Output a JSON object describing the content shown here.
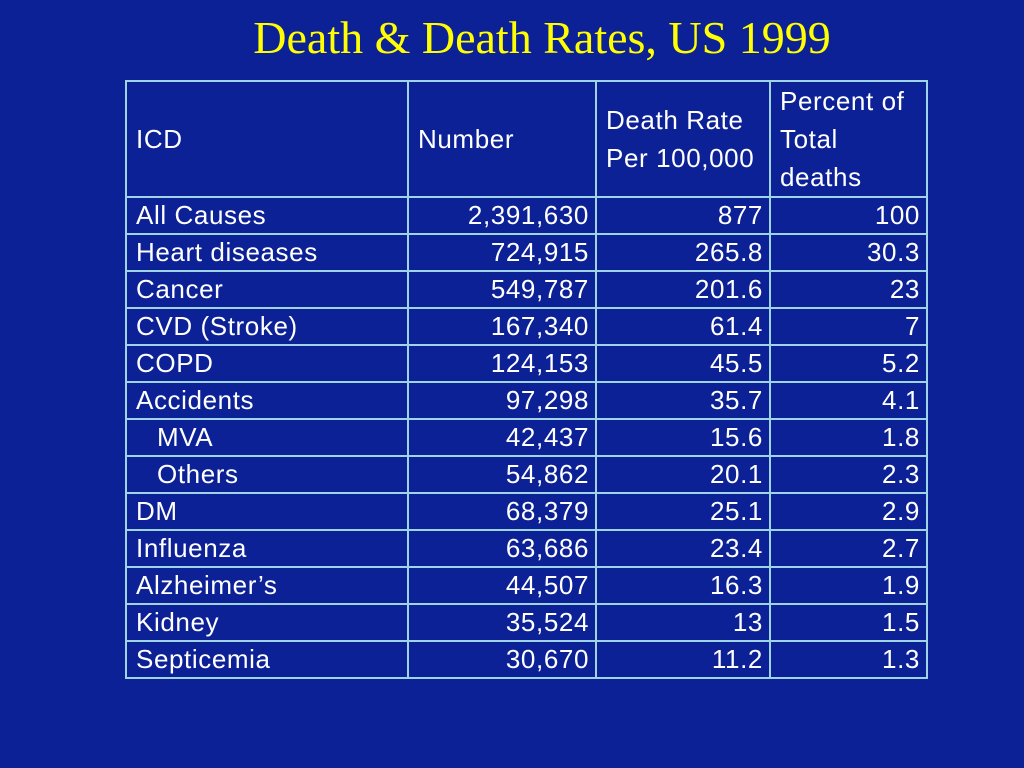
{
  "slide": {
    "title": "Death & Death Rates, US 1999"
  },
  "table": {
    "headers": [
      "ICD",
      "Number",
      "Death Rate Per 100,000",
      "Percent of Total deaths"
    ],
    "rows": [
      {
        "label": "All Causes",
        "indent": false,
        "number": "2,391,630",
        "rate": "877",
        "percent": "100"
      },
      {
        "label": "Heart diseases",
        "indent": false,
        "number": "724,915",
        "rate": "265.8",
        "percent": "30.3"
      },
      {
        "label": "Cancer",
        "indent": false,
        "number": "549,787",
        "rate": "201.6",
        "percent": "23"
      },
      {
        "label": "CVD (Stroke)",
        "indent": false,
        "number": "167,340",
        "rate": "61.4",
        "percent": "7"
      },
      {
        "label": "COPD",
        "indent": false,
        "number": "124,153",
        "rate": "45.5",
        "percent": "5.2"
      },
      {
        "label": "Accidents",
        "indent": false,
        "number": "97,298",
        "rate": "35.7",
        "percent": "4.1"
      },
      {
        "label": "MVA",
        "indent": true,
        "number": "42,437",
        "rate": "15.6",
        "percent": "1.8"
      },
      {
        "label": "Others",
        "indent": true,
        "number": "54,862",
        "rate": "20.1",
        "percent": "2.3"
      },
      {
        "label": "DM",
        "indent": false,
        "number": "68,379",
        "rate": "25.1",
        "percent": "2.9"
      },
      {
        "label": "Influenza",
        "indent": false,
        "number": "63,686",
        "rate": "23.4",
        "percent": "2.7"
      },
      {
        "label": "Alzheimer’s",
        "indent": false,
        "number": "44,507",
        "rate": "16.3",
        "percent": "1.9"
      },
      {
        "label": "Kidney",
        "indent": false,
        "number": "35,524",
        "rate": "13",
        "percent": "1.5"
      },
      {
        "label": "Septicemia",
        "indent": false,
        "number": "30,670",
        "rate": "11.2",
        "percent": "1.3"
      }
    ]
  },
  "colors": {
    "background": "#0d2196",
    "title": "#ffff00",
    "text": "#ffffff",
    "grid": "#9fd3e6"
  }
}
